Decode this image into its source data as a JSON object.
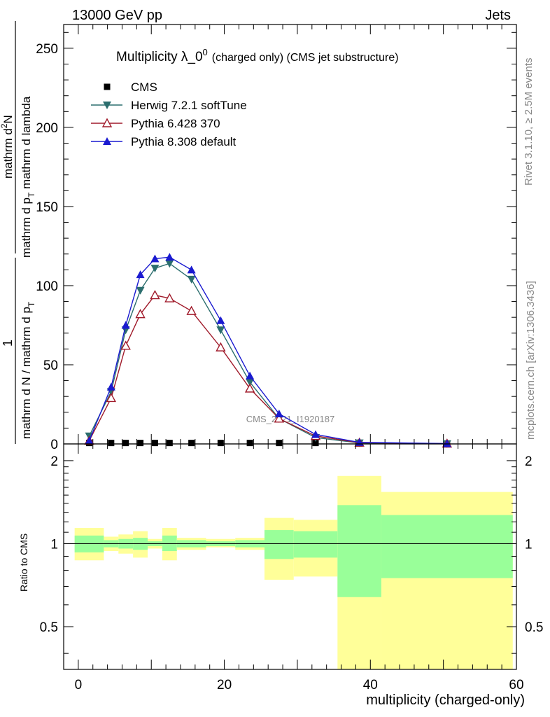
{
  "header": {
    "left": "13000 GeV pp",
    "right": "Jets"
  },
  "side_text": {
    "rivet": "Rivet 3.1.10, ≥ 2.5M events",
    "mcplots": "mcplots.cern.ch [arXiv:1306.3436]"
  },
  "watermark": "CMS_2021_I1920187",
  "chart_data": [
    {
      "type": "line",
      "title": "Multiplicity λ_0",
      "title_sup": "0",
      "subtitle": "(charged only) (CMS jet substructure)",
      "ylabel_numerator": "mathrm d",
      "ylabel_numerator_sup": "2",
      "ylabel_numerator_end": "N",
      "ylabel_denominator": "mathrm d p",
      "ylabel_denominator_sub": "T",
      "ylabel_denominator_end": " mathrm d lambda",
      "ylabel_prefactor_num": "1",
      "ylabel_prefactor_den": "mathrm d N / mathrm d p",
      "ylabel_prefactor_sub": "T",
      "xlim": [
        -2,
        60
      ],
      "ylim": [
        0,
        265
      ],
      "yticks": [
        0,
        50,
        100,
        150,
        200,
        250
      ],
      "ytick_labels": [
        "0",
        "50",
        "100",
        "150",
        "200",
        "250"
      ],
      "legend": [
        {
          "name": "CMS",
          "color": "#000000",
          "marker": "square"
        },
        {
          "name": "Herwig 7.2.1 softTune",
          "color": "#2c6e6e",
          "marker": "triangle-down"
        },
        {
          "name": "Pythia 6.428 370",
          "color": "#a01a2a",
          "marker": "triangle-open"
        },
        {
          "name": "Pythia 8.308 default",
          "color": "#1a1ad0",
          "marker": "triangle"
        }
      ],
      "series": [
        {
          "name": "CMS",
          "x": [
            1.5,
            4.5,
            6.5,
            8.5,
            10.5,
            12.5,
            15.5,
            19.5,
            23.5,
            27.5,
            32.5,
            38.5,
            50.5
          ],
          "values": [
            0.6,
            0.6,
            0.6,
            0.6,
            0.6,
            0.6,
            0.6,
            0.6,
            0.6,
            0.6,
            0.6,
            0.3,
            0.1
          ]
        },
        {
          "name": "Herwig 7.2.1 softTune",
          "x": [
            1.5,
            4.5,
            6.5,
            8.5,
            10.5,
            12.5,
            15.5,
            19.5,
            23.5,
            27.5,
            32.5,
            38.5,
            50.5
          ],
          "values": [
            5,
            33,
            72,
            97,
            111,
            114,
            104,
            72,
            39,
            16,
            4,
            0.6,
            0.1
          ]
        },
        {
          "name": "Pythia 6.428 370",
          "x": [
            1.5,
            4.5,
            6.5,
            8.5,
            10.5,
            12.5,
            15.5,
            19.5,
            23.5,
            27.5,
            32.5,
            38.5,
            50.5
          ],
          "values": [
            2,
            29,
            62,
            82,
            94,
            92,
            84,
            61,
            35,
            16,
            5,
            0.8,
            0.2
          ]
        },
        {
          "name": "Pythia 8.308 default",
          "x": [
            1.5,
            4.5,
            6.5,
            8.5,
            10.5,
            12.5,
            15.5,
            19.5,
            23.5,
            27.5,
            32.5,
            38.5,
            50.5
          ],
          "values": [
            2,
            36,
            75,
            107,
            117,
            118,
            110,
            78,
            43,
            19,
            6,
            1,
            0.2
          ]
        }
      ]
    },
    {
      "type": "area",
      "title": "Ratio to CMS",
      "ylabel": "Ratio to CMS",
      "xlabel": "multiplicity (charged-only)",
      "xlim": [
        -2,
        60
      ],
      "ylim": [
        0.35,
        2.3
      ],
      "ylog": true,
      "xticks": [
        0,
        20,
        40,
        60
      ],
      "xtick_labels": [
        "0",
        "20",
        "40",
        "60"
      ],
      "yticks": [
        0.5,
        1,
        2
      ],
      "ytick_labels": [
        "0.5",
        "1",
        "2"
      ],
      "reference_line": 1,
      "colors": {
        "stat": "#99ff99",
        "total": "#ffff99"
      },
      "bins": [
        {
          "x0": -0.5,
          "x1": 3.5,
          "stat": [
            0.93,
            1.07
          ],
          "total": [
            0.87,
            1.14
          ]
        },
        {
          "x0": 3.5,
          "x1": 5.5,
          "stat": [
            0.97,
            1.03
          ],
          "total": [
            0.94,
            1.06
          ]
        },
        {
          "x0": 5.5,
          "x1": 7.5,
          "stat": [
            0.96,
            1.04
          ],
          "total": [
            0.92,
            1.08
          ]
        },
        {
          "x0": 7.5,
          "x1": 9.5,
          "stat": [
            0.95,
            1.05
          ],
          "total": [
            0.89,
            1.11
          ]
        },
        {
          "x0": 9.5,
          "x1": 11.5,
          "stat": [
            0.98,
            1.02
          ],
          "total": [
            0.96,
            1.04
          ]
        },
        {
          "x0": 11.5,
          "x1": 13.5,
          "stat": [
            0.94,
            1.07
          ],
          "total": [
            0.87,
            1.14
          ]
        },
        {
          "x0": 13.5,
          "x1": 17.5,
          "stat": [
            0.97,
            1.03
          ],
          "total": [
            0.95,
            1.05
          ]
        },
        {
          "x0": 17.5,
          "x1": 21.5,
          "stat": [
            0.98,
            1.02
          ],
          "total": [
            0.97,
            1.04
          ]
        },
        {
          "x0": 21.5,
          "x1": 25.5,
          "stat": [
            0.97,
            1.03
          ],
          "total": [
            0.95,
            1.05
          ]
        },
        {
          "x0": 25.5,
          "x1": 29.5,
          "stat": [
            0.88,
            1.12
          ],
          "total": [
            0.74,
            1.24
          ]
        },
        {
          "x0": 29.5,
          "x1": 35.5,
          "stat": [
            0.89,
            1.11
          ],
          "total": [
            0.76,
            1.22
          ]
        },
        {
          "x0": 35.5,
          "x1": 41.5,
          "stat": [
            0.64,
            1.38
          ],
          "total": [
            0.35,
            1.76
          ]
        },
        {
          "x0": 41.5,
          "x1": 59.5,
          "stat": [
            0.75,
            1.27
          ],
          "total": [
            0.35,
            1.54
          ]
        }
      ]
    }
  ]
}
